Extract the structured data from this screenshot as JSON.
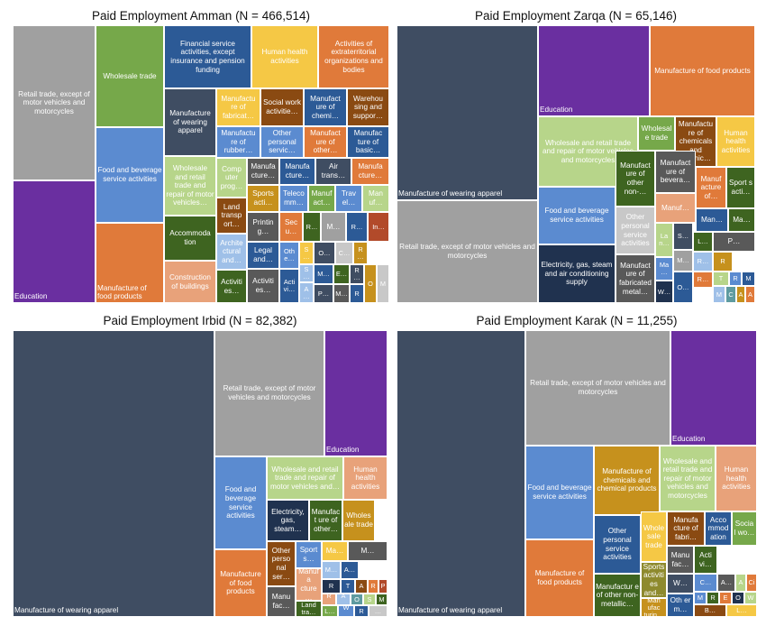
{
  "colors": {
    "navy": "#3F4D62",
    "grey": "#A0A0A0",
    "purple": "#6A2FA0",
    "orange": "#E07A3A",
    "green": "#76A84A",
    "blue": "#5B8BD0",
    "yellow": "#F5C845",
    "lightgreen": "#B7D58A",
    "darkblue": "#2C5A96",
    "brown": "#8A4A12",
    "darkgreen": "#3E6420",
    "teal": "#5E9BA0",
    "darkgrey": "#595959",
    "mustard": "#C6911D",
    "lightblue": "#9FC0E8",
    "pink": "#E8A27A",
    "navy2": "#20324F",
    "red": "#B24A2A",
    "lightgrey": "#C8C8C8",
    "olive": "#8E8A2E"
  },
  "chart_data": [
    {
      "type": "treemap",
      "title": "Paid Employment Amman (N = 466,514)",
      "tiles": [
        {
          "label": "Retail trade, except of motor vehicles and motorcycles",
          "color": "grey"
        },
        {
          "label": "Education",
          "color": "purple"
        },
        {
          "label": "Wholesale trade",
          "color": "green"
        },
        {
          "label": "Food and beverage service activities",
          "color": "blue"
        },
        {
          "label": "Manufacture of food products",
          "color": "orange"
        },
        {
          "label": "Financial service activities, except insurance and pension funding",
          "color": "darkblue"
        },
        {
          "label": "Human health activities",
          "color": "yellow"
        },
        {
          "label": "Activities of extraterritorial organizations and bodies",
          "color": "orange"
        },
        {
          "label": "Manufacture of wearing apparel",
          "color": "navy"
        },
        {
          "label": "Manufactu re of fabricat…",
          "color": "yellow"
        },
        {
          "label": "Social work activitie…",
          "color": "brown"
        },
        {
          "label": "Manufact ure of chemi…",
          "color": "darkblue"
        },
        {
          "label": "Warehou sing and suppor…",
          "color": "brown"
        },
        {
          "label": "Manufactu re of rubber…",
          "color": "blue"
        },
        {
          "label": "Other personal servic…",
          "color": "blue"
        },
        {
          "label": "Manufact ure of other…",
          "color": "orange"
        },
        {
          "label": "Manufac ture of basic…",
          "color": "darkblue"
        },
        {
          "label": "Wholesale and retail trade and repair of motor vehicles…",
          "color": "lightgreen"
        },
        {
          "label": "Comp uter prog…",
          "color": "lightgreen"
        },
        {
          "label": "Manufa cture…",
          "color": "darkgrey"
        },
        {
          "label": "Manufa cture…",
          "color": "darkblue"
        },
        {
          "label": "Air trans…",
          "color": "navy"
        },
        {
          "label": "Manufa cture…",
          "color": "orange"
        },
        {
          "label": "Land transp ort…",
          "color": "brown"
        },
        {
          "label": "Sports acti…",
          "color": "mustard"
        },
        {
          "label": "Teleco mm…",
          "color": "blue"
        },
        {
          "label": "Manuf act…",
          "color": "green"
        },
        {
          "label": "Trav el…",
          "color": "blue"
        },
        {
          "label": "Man uf…",
          "color": "lightgreen"
        },
        {
          "label": "Accommoda tion",
          "color": "darkgreen"
        },
        {
          "label": "Printin g…",
          "color": "darkgrey"
        },
        {
          "label": "Sec u…",
          "color": "orange"
        },
        {
          "label": "R…",
          "color": "darkgreen"
        },
        {
          "label": "M…",
          "color": "grey"
        },
        {
          "label": "R…",
          "color": "darkblue"
        },
        {
          "label": "In…",
          "color": "red"
        },
        {
          "label": "Archite ctural and…",
          "color": "lightblue"
        },
        {
          "label": "Legal and…",
          "color": "darkblue"
        },
        {
          "label": "Oth e…",
          "color": "blue"
        },
        {
          "label": "S…",
          "color": "yellow"
        },
        {
          "label": "O…",
          "color": "navy"
        },
        {
          "label": "C…",
          "color": "lightgrey"
        },
        {
          "label": "R…",
          "color": "mustard"
        },
        {
          "label": "Construction of buildings",
          "color": "pink"
        },
        {
          "label": "Activiti es…",
          "color": "darkgreen"
        },
        {
          "label": "Activiti es…",
          "color": "darkgrey"
        },
        {
          "label": "Acti vi…",
          "color": "darkblue"
        },
        {
          "label": "S…",
          "color": "lightblue"
        },
        {
          "label": "M…",
          "color": "darkblue"
        },
        {
          "label": "E…",
          "color": "darkgreen"
        },
        {
          "label": "R…",
          "color": "navy"
        },
        {
          "label": "A…",
          "color": "lightblue"
        },
        {
          "label": "P…",
          "color": "navy"
        },
        {
          "label": "M…",
          "color": "darkgrey"
        },
        {
          "label": "R",
          "color": "darkblue"
        },
        {
          "label": "O",
          "color": "mustard"
        },
        {
          "label": "M",
          "color": "lightgrey"
        },
        {
          "label": "E",
          "color": "green"
        }
      ]
    },
    {
      "type": "treemap",
      "title": "Paid Employment Zarqa (N = 65,146)",
      "tiles": [
        {
          "label": "Manufacture of wearing apparel",
          "color": "navy"
        },
        {
          "label": "Retail trade, except of motor vehicles and motorcycles",
          "color": "grey"
        },
        {
          "label": "Education",
          "color": "purple"
        },
        {
          "label": "Manufacture of food products",
          "color": "orange"
        },
        {
          "label": "Wholesale and retail trade and repair of motor vehicles and motorcycles",
          "color": "lightgreen"
        },
        {
          "label": "Wholesale trade",
          "color": "green"
        },
        {
          "label": "Manufactu re of chemicals and chemic…",
          "color": "brown"
        },
        {
          "label": "Human health activities",
          "color": "yellow"
        },
        {
          "label": "Food and beverage service activities",
          "color": "blue"
        },
        {
          "label": "Manufact ure of other non-…",
          "color": "darkgreen"
        },
        {
          "label": "Manufact ure of bevera…",
          "color": "darkgrey"
        },
        {
          "label": "Manuf acture of…",
          "color": "orange"
        },
        {
          "label": "Sport s acti…",
          "color": "darkgreen"
        },
        {
          "label": "Electricity, gas, steam and air conditioning supply",
          "color": "navy2"
        },
        {
          "label": "Other personal service activities",
          "color": "lightgrey"
        },
        {
          "label": "Manuf…",
          "color": "pink"
        },
        {
          "label": "Man…",
          "color": "darkblue"
        },
        {
          "label": "Ma…",
          "color": "darkgreen"
        },
        {
          "label": "Manufact ure of fabricated metal…",
          "color": "darkgrey"
        },
        {
          "label": "La n…",
          "color": "lightgreen"
        },
        {
          "label": "S…",
          "color": "navy"
        },
        {
          "label": "L…",
          "color": "darkgreen"
        },
        {
          "label": "P…",
          "color": "darkgrey"
        },
        {
          "label": "Ma…",
          "color": "blue"
        },
        {
          "label": "M…",
          "color": "grey"
        },
        {
          "label": "R…",
          "color": "lightblue"
        },
        {
          "label": "R",
          "color": "mustard"
        },
        {
          "label": "W…",
          "color": "navy2"
        },
        {
          "label": "O…",
          "color": "darkblue"
        },
        {
          "label": "R…",
          "color": "orange"
        },
        {
          "label": "T",
          "color": "lightgreen"
        },
        {
          "label": "R",
          "color": "blue"
        },
        {
          "label": "M",
          "color": "darkblue"
        },
        {
          "label": "M",
          "color": "lightblue"
        },
        {
          "label": "C",
          "color": "teal"
        },
        {
          "label": "A",
          "color": "mustard"
        },
        {
          "label": "A",
          "color": "orange"
        },
        {
          "label": "W",
          "color": "navy"
        }
      ]
    },
    {
      "type": "treemap",
      "title": "Paid Employment Irbid (N = 82,382)",
      "tiles": [
        {
          "label": "Manufacture of wearing apparel",
          "color": "navy"
        },
        {
          "label": "Retail trade, except of motor vehicles and motorcycles",
          "color": "grey"
        },
        {
          "label": "Education",
          "color": "purple"
        },
        {
          "label": "Food and beverage service activities",
          "color": "blue"
        },
        {
          "label": "Wholesale and retail trade and repair of motor vehicles and…",
          "color": "lightgreen"
        },
        {
          "label": "Human health activities",
          "color": "pink"
        },
        {
          "label": "Electricity, gas, steam…",
          "color": "navy2"
        },
        {
          "label": "Manufact ure of other…",
          "color": "darkgreen"
        },
        {
          "label": "Wholes ale trade",
          "color": "mustard"
        },
        {
          "label": "Manufacture of food products",
          "color": "orange"
        },
        {
          "label": "Other perso nal ser…",
          "color": "brown"
        },
        {
          "label": "Sport s…",
          "color": "blue"
        },
        {
          "label": "Ma…",
          "color": "yellow"
        },
        {
          "label": "M…",
          "color": "darkgrey"
        },
        {
          "label": "Manufa cture…",
          "color": "pink"
        },
        {
          "label": "Manu fac…",
          "color": "darkgrey"
        },
        {
          "label": "M…",
          "color": "lightblue"
        },
        {
          "label": "A…",
          "color": "darkblue"
        },
        {
          "label": "Land tra…",
          "color": "darkgreen"
        },
        {
          "label": "R",
          "color": "navy2"
        },
        {
          "label": "T",
          "color": "darkblue"
        },
        {
          "label": "A",
          "color": "brown"
        },
        {
          "label": "R",
          "color": "orange"
        },
        {
          "label": "P",
          "color": "red"
        },
        {
          "label": "R…",
          "color": "pink"
        },
        {
          "label": "A…",
          "color": "lightblue"
        },
        {
          "label": "O",
          "color": "teal"
        },
        {
          "label": "S",
          "color": "lightgreen"
        },
        {
          "label": "M",
          "color": "darkgreen"
        },
        {
          "label": "L…",
          "color": "green"
        },
        {
          "label": "W…",
          "color": "blue"
        },
        {
          "label": "R",
          "color": "darkblue"
        },
        {
          "label": "…",
          "color": "lightgrey"
        }
      ]
    },
    {
      "type": "treemap",
      "title": "Paid Employment Karak (N = 11,255)",
      "tiles": [
        {
          "label": "Manufacture of wearing apparel",
          "color": "navy"
        },
        {
          "label": "Retail trade, except of motor vehicles and motorcycles",
          "color": "grey"
        },
        {
          "label": "Education",
          "color": "purple"
        },
        {
          "label": "Food and beverage service activities",
          "color": "blue"
        },
        {
          "label": "Manufacture of chemicals and chemical products",
          "color": "mustard"
        },
        {
          "label": "Wholesale and retail trade and repair of motor vehicles and motorcycles",
          "color": "lightgreen"
        },
        {
          "label": "Human health activities",
          "color": "pink"
        },
        {
          "label": "Manufacture of food products",
          "color": "orange"
        },
        {
          "label": "Other personal service activities",
          "color": "darkblue"
        },
        {
          "label": "Whole sale trade",
          "color": "yellow"
        },
        {
          "label": "Manufa cture of fabri…",
          "color": "brown"
        },
        {
          "label": "Acco mmod ation",
          "color": "darkblue"
        },
        {
          "label": "Socia l wo…",
          "color": "green"
        },
        {
          "label": "Manufactur e of other non- metallic…",
          "color": "darkgreen"
        },
        {
          "label": "Sports activiti es and…",
          "color": "olive"
        },
        {
          "label": "Man ufac turin…",
          "color": "mustard"
        },
        {
          "label": "Manu fac…",
          "color": "darkgrey"
        },
        {
          "label": "Acti vi…",
          "color": "darkgreen"
        },
        {
          "label": "W…",
          "color": "navy"
        },
        {
          "label": "Oth er m…",
          "color": "darkblue"
        },
        {
          "label": "C…",
          "color": "blue"
        },
        {
          "label": "A…",
          "color": "darkgrey"
        },
        {
          "label": "A",
          "color": "lightgreen"
        },
        {
          "label": "Ci",
          "color": "orange"
        },
        {
          "label": "M",
          "color": "blue"
        },
        {
          "label": "R",
          "color": "darkgreen"
        },
        {
          "label": "E",
          "color": "orange"
        },
        {
          "label": "O",
          "color": "navy2"
        },
        {
          "label": "W",
          "color": "lightgreen"
        },
        {
          "label": "B…",
          "color": "brown"
        },
        {
          "label": "L…",
          "color": "yellow"
        }
      ]
    }
  ]
}
